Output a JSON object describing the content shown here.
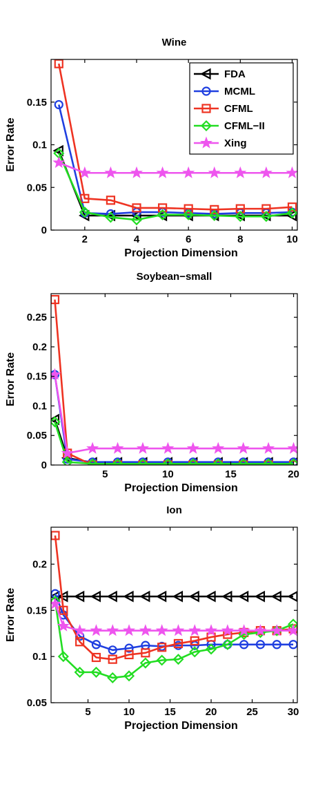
{
  "legend": [
    {
      "name": "FDA",
      "color": "#000000",
      "marker": "triangle-left"
    },
    {
      "name": "MCML",
      "color": "#1f3fe0",
      "marker": "circle"
    },
    {
      "name": "CFML",
      "color": "#ee3322",
      "marker": "square"
    },
    {
      "name": "CFML−II",
      "color": "#22dd22",
      "marker": "diamond"
    },
    {
      "name": "Xing",
      "color": "#ee55ee",
      "marker": "star"
    }
  ],
  "chart_data": [
    {
      "type": "line",
      "title": "Wine",
      "xlabel": "Projection Dimension",
      "ylabel": "Error Rate",
      "xlim": [
        0.7,
        10.2
      ],
      "ylim": [
        0,
        0.2
      ],
      "xticks": [
        2,
        4,
        6,
        8,
        10
      ],
      "xtick_labels": [
        "2",
        "4",
        "6",
        "8",
        "10"
      ],
      "yticks": [
        0,
        0.05,
        0.1,
        0.15
      ],
      "ytick_labels": [
        "0",
        "0.05",
        "0.1",
        "0.15"
      ],
      "legend_position": "top-right",
      "x": [
        1,
        2,
        3,
        4,
        5,
        6,
        7,
        8,
        9,
        10
      ],
      "series": [
        {
          "name": "FDA",
          "values": [
            0.093,
            0.017,
            0.017,
            0.017,
            0.017,
            0.017,
            0.017,
            0.017,
            0.017,
            0.017
          ]
        },
        {
          "name": "MCML",
          "values": [
            0.147,
            0.02,
            0.019,
            0.021,
            0.021,
            0.02,
            0.019,
            0.02,
            0.02,
            0.021
          ]
        },
        {
          "name": "CFML",
          "values": [
            0.195,
            0.037,
            0.035,
            0.026,
            0.026,
            0.025,
            0.024,
            0.025,
            0.025,
            0.027
          ]
        },
        {
          "name": "CFML−II",
          "values": [
            0.09,
            0.021,
            0.015,
            0.012,
            0.018,
            0.018,
            0.017,
            0.016,
            0.016,
            0.02
          ]
        },
        {
          "name": "Xing",
          "values": [
            0.079,
            0.067,
            0.067,
            0.067,
            0.067,
            0.067,
            0.067,
            0.067,
            0.067,
            0.067
          ]
        }
      ]
    },
    {
      "type": "line",
      "title": "Soybean−small",
      "xlabel": "Projection Dimension",
      "ylabel": "Error Rate",
      "xlim": [
        0.7,
        20.3
      ],
      "ylim": [
        0,
        0.29
      ],
      "xticks": [
        5,
        10,
        15,
        20
      ],
      "xtick_labels": [
        "5",
        "10",
        "15",
        "20"
      ],
      "yticks": [
        0,
        0.05,
        0.1,
        0.15,
        0.2,
        0.25
      ],
      "ytick_labels": [
        "0",
        "0.05",
        "0.1",
        "0.15",
        "0.2",
        "0.25"
      ],
      "x": [
        1,
        2,
        4,
        6,
        8,
        10,
        12,
        14,
        16,
        18,
        20
      ],
      "series": [
        {
          "name": "FDA",
          "values": [
            0.077,
            0.012,
            0.004,
            0.004,
            0.004,
            0.004,
            0.004,
            0.004,
            0.004,
            0.004,
            0.004
          ]
        },
        {
          "name": "MCML",
          "values": [
            0.153,
            0.01,
            0.005,
            0.005,
            0.005,
            0.005,
            0.005,
            0.005,
            0.005,
            0.005,
            0.005
          ]
        },
        {
          "name": "CFML",
          "values": [
            0.28,
            0.02,
            0.0,
            0.0,
            0.0,
            0.0,
            0.0,
            0.0,
            0.0,
            0.0,
            0.0
          ]
        },
        {
          "name": "CFML−II",
          "values": [
            0.073,
            0.005,
            0.002,
            0.002,
            0.002,
            0.002,
            0.002,
            0.002,
            0.002,
            0.002,
            0.002
          ]
        },
        {
          "name": "Xing",
          "values": [
            0.153,
            0.02,
            0.028,
            0.028,
            0.028,
            0.028,
            0.028,
            0.028,
            0.028,
            0.028,
            0.028
          ]
        }
      ]
    },
    {
      "type": "line",
      "title": "Ion",
      "xlabel": "Projection Dimension",
      "ylabel": "Error Rate",
      "xlim": [
        0.5,
        30.5
      ],
      "ylim": [
        0.05,
        0.24
      ],
      "xticks": [
        5,
        10,
        15,
        20,
        25,
        30
      ],
      "xtick_labels": [
        "5",
        "10",
        "15",
        "20",
        "25",
        "30"
      ],
      "yticks": [
        0.05,
        0.1,
        0.15,
        0.2
      ],
      "ytick_labels": [
        "0.05",
        "0.1",
        "0.15",
        "0.2"
      ],
      "x": [
        1,
        2,
        4,
        6,
        8,
        10,
        12,
        14,
        16,
        18,
        20,
        22,
        24,
        26,
        28,
        30
      ],
      "series": [
        {
          "name": "FDA",
          "values": [
            0.165,
            0.165,
            0.165,
            0.165,
            0.165,
            0.165,
            0.165,
            0.165,
            0.165,
            0.165,
            0.165,
            0.165,
            0.165,
            0.165,
            0.165,
            0.165
          ]
        },
        {
          "name": "MCML",
          "values": [
            0.168,
            0.145,
            0.122,
            0.113,
            0.107,
            0.109,
            0.112,
            0.111,
            0.112,
            0.112,
            0.113,
            0.113,
            0.113,
            0.113,
            0.113,
            0.113
          ]
        },
        {
          "name": "CFML",
          "values": [
            0.231,
            0.15,
            0.116,
            0.099,
            0.097,
            0.102,
            0.104,
            0.11,
            0.114,
            0.117,
            0.121,
            0.124,
            0.126,
            0.128,
            0.128,
            0.13
          ]
        },
        {
          "name": "CFML−II",
          "values": [
            0.16,
            0.1,
            0.083,
            0.083,
            0.077,
            0.079,
            0.093,
            0.096,
            0.097,
            0.105,
            0.108,
            0.113,
            0.124,
            0.126,
            0.128,
            0.135
          ]
        },
        {
          "name": "Xing",
          "values": [
            0.157,
            0.133,
            0.128,
            0.128,
            0.128,
            0.128,
            0.128,
            0.128,
            0.128,
            0.128,
            0.128,
            0.128,
            0.128,
            0.128,
            0.128,
            0.128
          ]
        }
      ]
    }
  ]
}
